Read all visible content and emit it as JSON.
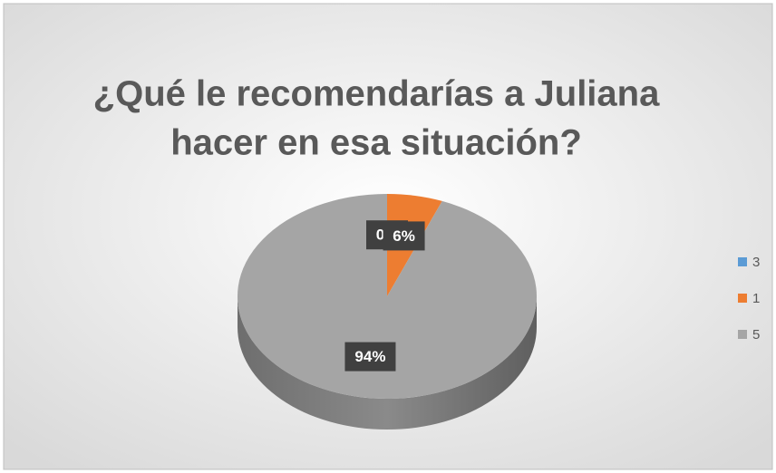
{
  "chart_data": {
    "type": "pie3d",
    "title": [
      "¿Qué le recomendarías a Juliana",
      "hacer en esa situación?"
    ],
    "categories": [
      "3",
      "1",
      "5"
    ],
    "values": [
      0,
      6,
      94
    ],
    "value_labels": [
      "0%",
      "6%",
      "94%"
    ],
    "colors": [
      "#5b9bd5",
      "#ed7d31",
      "#a5a5a5"
    ],
    "legend": "right"
  }
}
